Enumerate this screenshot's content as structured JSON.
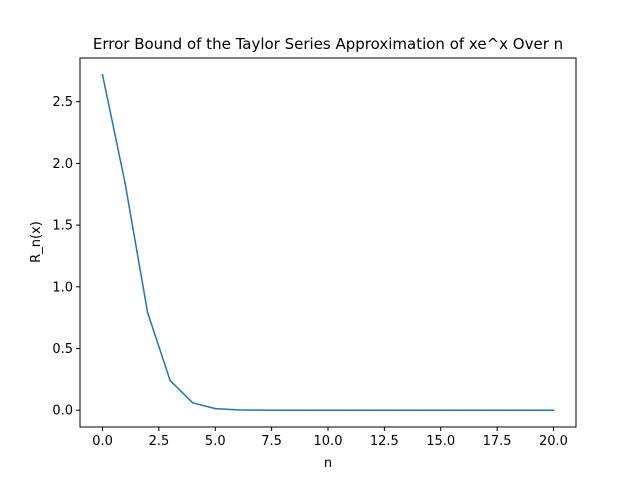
{
  "chart_data": {
    "type": "line",
    "title": "Error Bound of the Taylor Series Approximation of xe^x Over n",
    "xlabel": "n",
    "ylabel": "R_n(x)",
    "xlim": [
      -1.0,
      21.0
    ],
    "ylim": [
      -0.136,
      2.854
    ],
    "x_ticks": [
      0.0,
      2.5,
      5.0,
      7.5,
      10.0,
      12.5,
      15.0,
      17.5,
      20.0
    ],
    "x_tick_labels": [
      "0.0",
      "2.5",
      "5.0",
      "7.5",
      "10.0",
      "12.5",
      "15.0",
      "17.5",
      "20.0"
    ],
    "y_ticks": [
      0.0,
      0.5,
      1.0,
      1.5,
      2.0,
      2.5
    ],
    "y_tick_labels": [
      "0.0",
      "0.5",
      "1.0",
      "1.5",
      "2.0",
      "2.5"
    ],
    "grid": false,
    "line_color": "#1f77b4",
    "series": [
      {
        "x": [
          0,
          1,
          2,
          3,
          4,
          5,
          6,
          7,
          8,
          9,
          10,
          11,
          12,
          13,
          14,
          15,
          16,
          17,
          18,
          19,
          20
        ],
        "values": [
          2.718,
          1.84,
          0.79,
          0.24,
          0.06,
          0.013,
          0.003,
          0.0005,
          0.0001,
          0.0,
          0.0,
          0.0,
          0.0,
          0.0,
          0.0,
          0.0,
          0.0,
          0.0,
          0.0,
          0.0,
          0.0
        ]
      }
    ]
  }
}
